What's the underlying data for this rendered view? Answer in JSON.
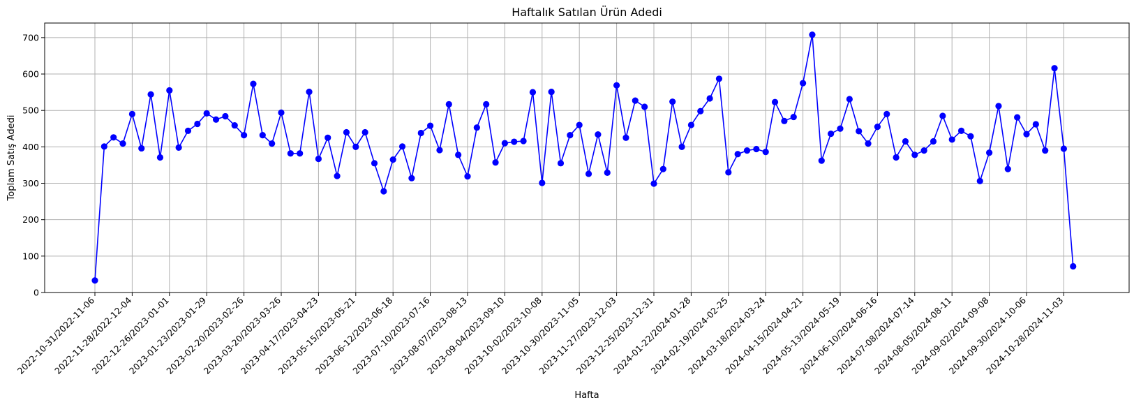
{
  "chart_data": {
    "type": "line",
    "title": "Haftalık Satılan Ürün Adedi",
    "xlabel": "Hafta",
    "ylabel": "Toplam Satış Adedi",
    "ylim": [
      0,
      740
    ],
    "y_ticks": [
      0,
      100,
      200,
      300,
      400,
      500,
      600,
      700
    ],
    "grid": true,
    "line_color": "#0000ff",
    "marker": "circle",
    "x_tick_labels": [
      "2022-10-31/2022-11-06",
      "2022-11-28/2022-12-04",
      "2022-12-26/2023-01-01",
      "2023-01-23/2023-01-29",
      "2023-02-20/2023-02-26",
      "2023-03-20/2023-03-26",
      "2023-04-17/2023-04-23",
      "2023-05-15/2023-05-21",
      "2023-06-12/2023-06-18",
      "2023-07-10/2023-07-16",
      "2023-08-07/2023-08-13",
      "2023-09-04/2023-09-10",
      "2023-10-02/2023-10-08",
      "2023-10-30/2023-11-05",
      "2023-11-27/2023-12-03",
      "2023-12-25/2023-12-31",
      "2024-01-22/2024-01-28",
      "2024-02-19/2024-02-25",
      "2024-03-18/2024-03-24",
      "2024-04-15/2024-04-21",
      "2024-05-13/2024-05-19",
      "2024-06-10/2024-06-16",
      "2024-07-08/2024-07-14",
      "2024-08-05/2024-08-11",
      "2024-09-02/2024-09-08",
      "2024-09-30/2024-10-06",
      "2024-10-28/2024-11-03"
    ],
    "tick_every_n_weeks": 4,
    "series": [
      {
        "values": [
          33,
          401,
          426,
          409,
          490,
          396,
          544,
          371,
          555,
          398,
          444,
          463,
          492,
          475,
          484,
          459,
          432,
          573,
          432,
          409,
          494,
          382,
          382,
          551,
          367,
          425,
          320,
          440,
          400,
          440,
          355,
          278,
          365,
          401,
          314,
          438,
          458,
          391,
          517,
          378,
          319,
          453,
          517,
          357,
          410,
          414,
          416,
          550,
          301,
          551,
          355,
          432,
          460,
          326,
          434,
          329,
          569,
          425,
          527,
          510,
          299,
          339,
          524,
          400,
          460,
          498,
          533,
          587,
          330,
          380,
          390,
          394,
          386,
          523,
          471,
          482,
          575,
          708,
          362,
          436,
          450,
          531,
          443,
          409,
          455,
          490,
          371,
          415,
          378,
          390,
          415,
          485,
          420,
          444,
          429,
          306,
          384,
          512,
          339,
          481,
          435,
          462,
          390,
          616,
          395,
          72
        ]
      }
    ]
  }
}
